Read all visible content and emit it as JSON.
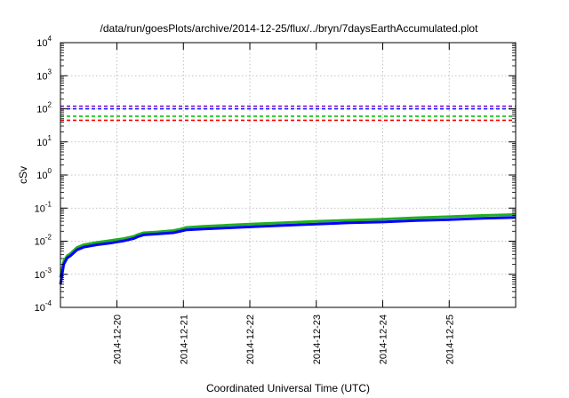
{
  "chart_data": {
    "type": "line",
    "title": "/data/run/goesPlots/archive/2014-12-25/flux/../bryn/7daysEarthAccumulated.plot",
    "xlabel": "Coordinated Universal Time (UTC)",
    "ylabel": "cSv",
    "yscale": "log",
    "ylim_exp": [
      -4,
      4
    ],
    "y_ticks": [
      {
        "base": "10",
        "exp": "4"
      },
      {
        "base": "10",
        "exp": "3"
      },
      {
        "base": "10",
        "exp": "2"
      },
      {
        "base": "10",
        "exp": "1"
      },
      {
        "base": "10",
        "exp": "0"
      },
      {
        "base": "10",
        "exp": "-1"
      },
      {
        "base": "10",
        "exp": "-2"
      },
      {
        "base": "10",
        "exp": "-3"
      },
      {
        "base": "10",
        "exp": "-4"
      }
    ],
    "x_range_days": [
      19.15,
      26.0
    ],
    "x_ticks": [
      {
        "label": "2014-12-20",
        "day": 20
      },
      {
        "label": "2014-12-21",
        "day": 21
      },
      {
        "label": "2014-12-22",
        "day": 22
      },
      {
        "label": "2014-12-23",
        "day": 23
      },
      {
        "label": "2014-12-24",
        "day": 24
      },
      {
        "label": "2014-12-25",
        "day": 25
      }
    ],
    "grid": true,
    "thresholds": [
      {
        "value": 100,
        "color": "#8000d0"
      },
      {
        "value": 100,
        "color": "#0000ff"
      },
      {
        "value": 60,
        "color": "#00c000"
      },
      {
        "value": 45,
        "color": "#ff0000"
      }
    ],
    "series": [
      {
        "color": "#20b020",
        "points": [
          [
            19.15,
            0.0008
          ],
          [
            19.2,
            0.0025
          ],
          [
            19.25,
            0.0036
          ],
          [
            19.3,
            0.0042
          ],
          [
            19.4,
            0.0065
          ],
          [
            19.5,
            0.0078
          ],
          [
            19.7,
            0.0092
          ],
          [
            19.9,
            0.0105
          ],
          [
            20.1,
            0.012
          ],
          [
            20.25,
            0.014
          ],
          [
            20.32,
            0.016
          ],
          [
            20.4,
            0.018
          ],
          [
            20.6,
            0.019
          ],
          [
            20.85,
            0.021
          ],
          [
            20.95,
            0.023
          ],
          [
            21.05,
            0.026
          ],
          [
            21.3,
            0.028
          ],
          [
            21.6,
            0.03
          ],
          [
            22.0,
            0.033
          ],
          [
            22.5,
            0.036
          ],
          [
            23.0,
            0.04
          ],
          [
            23.5,
            0.043
          ],
          [
            24.0,
            0.046
          ],
          [
            24.5,
            0.051
          ],
          [
            25.0,
            0.055
          ],
          [
            25.5,
            0.06
          ],
          [
            26.0,
            0.064
          ]
        ]
      },
      {
        "color": "#0000ff",
        "points": [
          [
            19.15,
            0.0005
          ],
          [
            19.2,
            0.002
          ],
          [
            19.25,
            0.0031
          ],
          [
            19.3,
            0.0036
          ],
          [
            19.4,
            0.0055
          ],
          [
            19.5,
            0.0066
          ],
          [
            19.7,
            0.0078
          ],
          [
            19.9,
            0.0088
          ],
          [
            20.1,
            0.0102
          ],
          [
            20.25,
            0.012
          ],
          [
            20.32,
            0.0138
          ],
          [
            20.4,
            0.0155
          ],
          [
            20.6,
            0.0165
          ],
          [
            20.85,
            0.018
          ],
          [
            20.95,
            0.0198
          ],
          [
            21.05,
            0.022
          ],
          [
            21.3,
            0.0235
          ],
          [
            21.6,
            0.025
          ],
          [
            22.0,
            0.027
          ],
          [
            22.5,
            0.03
          ],
          [
            23.0,
            0.033
          ],
          [
            23.5,
            0.036
          ],
          [
            24.0,
            0.038
          ],
          [
            24.5,
            0.042
          ],
          [
            25.0,
            0.045
          ],
          [
            25.5,
            0.049
          ],
          [
            26.0,
            0.052
          ]
        ]
      }
    ]
  }
}
